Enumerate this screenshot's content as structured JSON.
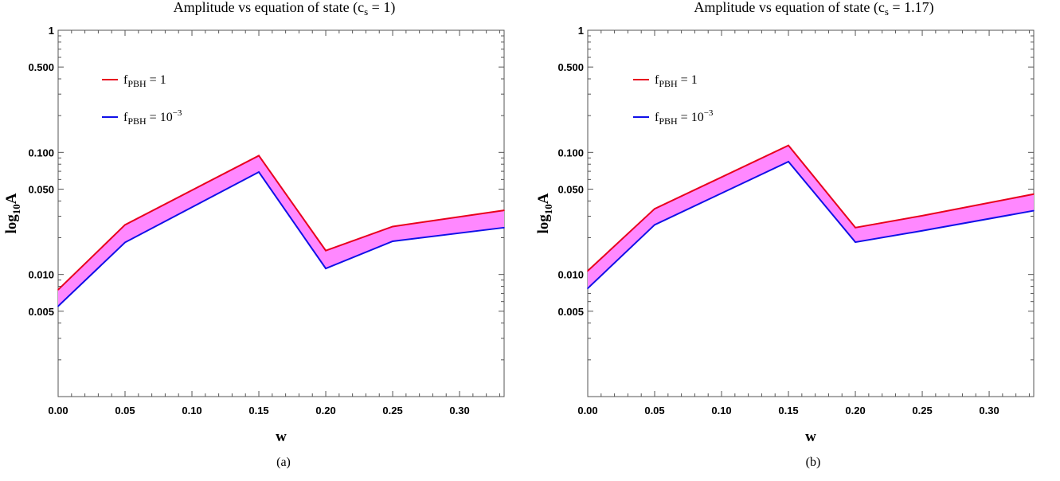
{
  "chart_data": [
    {
      "type": "line",
      "title": "Amplitude vs equation of state (cs = 1)",
      "title_parts": {
        "main": "Amplitude vs equation of state (",
        "var": "c",
        "sub": "s",
        "rest": " = 1)"
      },
      "xlabel": "w",
      "ylabel": "log10A",
      "ylabel_parts": {
        "main": "log",
        "sub": "10",
        "rest": "A"
      },
      "xlim": [
        0,
        0.3333
      ],
      "ylim": [
        0.001,
        1
      ],
      "yscale": "log",
      "x_ticks": [
        "0.00",
        "0.05",
        "0.10",
        "0.15",
        "0.20",
        "0.25",
        "0.30"
      ],
      "x_tick_values": [
        0,
        0.05,
        0.1,
        0.15,
        0.2,
        0.25,
        0.3
      ],
      "y_ticks": [
        "1",
        "0.500",
        "0.100",
        "0.050",
        "0.010",
        "0.005"
      ],
      "y_tick_values": [
        1,
        0.5,
        0.1,
        0.05,
        0.01,
        0.005
      ],
      "x": [
        0,
        0.05,
        0.15,
        0.2,
        0.25,
        0.3333
      ],
      "series": [
        {
          "name": "fPBH = 1",
          "name_parts": {
            "main": "f",
            "sub": "PBH",
            "rest": " = 1",
            "sup": ""
          },
          "color": "#e8001e",
          "values": [
            0.0075,
            0.0255,
            0.094,
            0.0157,
            0.0247,
            0.0335
          ]
        },
        {
          "name": "fPBH = 10^-3",
          "name_parts": {
            "main": "f",
            "sub": "PBH",
            "rest": " = 10",
            "sup": "−3"
          },
          "color": "#1010e8",
          "values": [
            0.0055,
            0.0183,
            0.069,
            0.0112,
            0.0187,
            0.0242
          ]
        }
      ],
      "fill_color": "#ff88ff",
      "legend": "top-left",
      "caption": "(a)"
    },
    {
      "type": "line",
      "title": "Amplitude vs equation of state (cs = 1.17)",
      "title_parts": {
        "main": "Amplitude vs equation of state (",
        "var": "c",
        "sub": "s",
        "rest": " = 1.17)"
      },
      "xlabel": "w",
      "ylabel": "log10A",
      "ylabel_parts": {
        "main": "log",
        "sub": "10",
        "rest": "A"
      },
      "xlim": [
        0,
        0.3333
      ],
      "ylim": [
        0.001,
        1
      ],
      "yscale": "log",
      "x_ticks": [
        "0.00",
        "0.05",
        "0.10",
        "0.15",
        "0.20",
        "0.25",
        "0.30"
      ],
      "x_tick_values": [
        0,
        0.05,
        0.1,
        0.15,
        0.2,
        0.25,
        0.3
      ],
      "y_ticks": [
        "1",
        "0.500",
        "0.100",
        "0.050",
        "0.010",
        "0.005"
      ],
      "y_tick_values": [
        1,
        0.5,
        0.1,
        0.05,
        0.01,
        0.005
      ],
      "x": [
        0,
        0.05,
        0.15,
        0.2,
        0.25,
        0.3333
      ],
      "series": [
        {
          "name": "fPBH = 1",
          "name_parts": {
            "main": "f",
            "sub": "PBH",
            "rest": " = 1",
            "sup": ""
          },
          "color": "#e8001e",
          "values": [
            0.0107,
            0.0345,
            0.114,
            0.0242,
            0.0303,
            0.0455
          ]
        },
        {
          "name": "fPBH = 10^-3",
          "name_parts": {
            "main": "f",
            "sub": "PBH",
            "rest": " = 10",
            "sup": "−3"
          },
          "color": "#1010e8",
          "values": [
            0.0077,
            0.0255,
            0.084,
            0.0184,
            0.0228,
            0.0333
          ]
        }
      ],
      "fill_color": "#ff88ff",
      "legend": "top-left",
      "caption": "(b)"
    }
  ]
}
